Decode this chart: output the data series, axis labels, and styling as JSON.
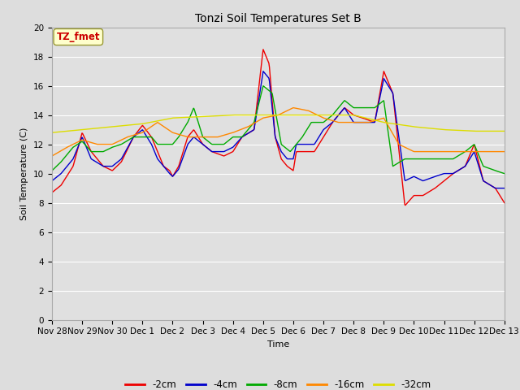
{
  "title": "Tonzi Soil Temperatures Set B",
  "xlabel": "Time",
  "ylabel": "Soil Temperature (C)",
  "ylim": [
    0,
    20
  ],
  "yticks": [
    0,
    2,
    4,
    6,
    8,
    10,
    12,
    14,
    16,
    18,
    20
  ],
  "annotation_text": "TZ_fmet",
  "annotation_color": "#cc0000",
  "annotation_bg": "#ffffcc",
  "annotation_border": "#999933",
  "series_colors": {
    "-2cm": "#ee0000",
    "-4cm": "#0000cc",
    "-8cm": "#00aa00",
    "-16cm": "#ff8800",
    "-32cm": "#dddd00"
  },
  "series_labels": [
    "-2cm",
    "-4cm",
    "-8cm",
    "-16cm",
    "-32cm"
  ],
  "background_color": "#dddddd",
  "plot_bg": "#e0e0e0",
  "grid_color": "#ffffff",
  "figwidth": 6.4,
  "figheight": 4.8,
  "dpi": 100,
  "x_start": 0,
  "x_end": 15,
  "x_tick_positions": [
    0,
    1,
    2,
    3,
    4,
    5,
    6,
    7,
    8,
    9,
    10,
    11,
    12,
    13,
    14,
    15
  ],
  "x_tick_labels": [
    "Nov 28",
    "Nov 29",
    "Nov 30",
    "Dec 1",
    "Dec 2",
    "Dec 3",
    "Dec 4",
    "Dec 5",
    "Dec 6",
    "Dec 7",
    "Dec 8",
    "Dec 9",
    "Dec 10",
    "Dec 11",
    "Dec 12",
    "Dec 13"
  ]
}
